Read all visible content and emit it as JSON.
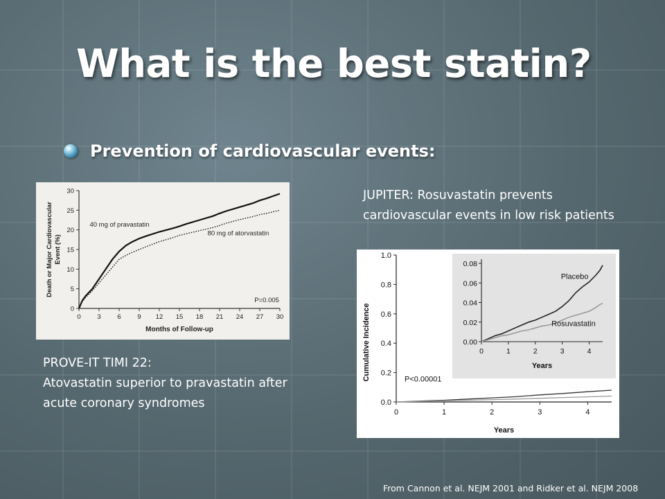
{
  "slide": {
    "title": "What is the best statin?",
    "bullet": "Prevention of cardiovascular events:",
    "caption_right": "JUPITER: Rosuvastatin prevents cardiovascular events in low risk patients",
    "caption_left_line1": "PROVE-IT TIMI 22:",
    "caption_left_line2": "Atovastatin superior to pravastatin after acute coronary syndromes",
    "footer": "From Cannon et al. NEJM 2001 and Ridker et al. NEJM 2008"
  },
  "chart_data": [
    {
      "type": "line",
      "ylabel": "Death or Major Cardiovascular Event (%)",
      "xlabel": "Months of Follow-up",
      "xlim": [
        0,
        30
      ],
      "ylim": [
        0,
        30
      ],
      "xticks": [
        0,
        3,
        6,
        9,
        12,
        15,
        18,
        21,
        24,
        27,
        30
      ],
      "yticks": [
        0,
        5,
        10,
        15,
        20,
        25,
        30
      ],
      "annotation": "P=0.005",
      "series": [
        {
          "name": "40 mg of pravastatin",
          "style": "solid",
          "x": [
            0,
            0.5,
            1,
            2,
            3,
            4,
            5,
            6,
            7,
            8,
            9,
            10,
            12,
            14,
            15,
            16,
            18,
            20,
            21,
            22,
            24,
            26,
            27,
            28,
            29,
            30
          ],
          "y": [
            0,
            2,
            3.2,
            5,
            7.5,
            10,
            12.5,
            14.5,
            16,
            17,
            17.8,
            18.4,
            19.5,
            20.4,
            20.9,
            21.5,
            22.5,
            23.5,
            24.2,
            24.8,
            25.8,
            26.8,
            27.5,
            28,
            28.6,
            29.2
          ]
        },
        {
          "name": "80 mg of atorvastatin",
          "style": "dotted",
          "x": [
            0,
            0.5,
            1,
            2,
            3,
            4,
            5,
            6,
            7,
            8,
            9,
            10,
            12,
            14,
            15,
            16,
            18,
            20,
            21,
            22,
            24,
            26,
            27,
            28,
            29,
            30
          ],
          "y": [
            0,
            1.8,
            2.8,
            4.5,
            6.5,
            8.5,
            10.5,
            12.5,
            13.5,
            14.3,
            15,
            15.7,
            17,
            18,
            18.6,
            19,
            19.8,
            20.6,
            21.1,
            21.7,
            22.6,
            23.4,
            23.9,
            24.2,
            24.6,
            25
          ]
        }
      ]
    },
    {
      "type": "line",
      "ylabel": "Cumulative Incidence",
      "xlabel": "Years",
      "xlim": [
        0,
        4.5
      ],
      "ylim": [
        0,
        1.0
      ],
      "xticks": [
        0,
        1,
        2,
        3,
        4
      ],
      "yticks": [
        0.0,
        0.2,
        0.4,
        0.6,
        0.8,
        1.0
      ],
      "annotation": "P<0.00001",
      "series": [
        {
          "name": "Placebo",
          "color": "#333333",
          "x": [
            0,
            0.5,
            1,
            1.5,
            2,
            2.5,
            3,
            3.5,
            4,
            4.5
          ],
          "y": [
            0,
            0.006,
            0.012,
            0.02,
            0.028,
            0.036,
            0.048,
            0.058,
            0.07,
            0.08
          ]
        },
        {
          "name": "Rosuvastatin",
          "color": "#999999",
          "x": [
            0,
            0.5,
            1,
            1.5,
            2,
            2.5,
            3,
            3.5,
            4,
            4.5
          ],
          "y": [
            0,
            0.004,
            0.008,
            0.012,
            0.016,
            0.02,
            0.025,
            0.03,
            0.035,
            0.04
          ]
        }
      ],
      "inset": {
        "xlabel": "Years",
        "xlim": [
          0,
          4.5
        ],
        "ylim": [
          0,
          0.08
        ],
        "xticks": [
          0,
          1,
          2,
          3,
          4
        ],
        "yticks": [
          0.0,
          0.02,
          0.04,
          0.06,
          0.08
        ],
        "ytick_labels": [
          "0.00",
          "0.02",
          "0.04",
          "0.06",
          "0.08"
        ],
        "series": [
          {
            "name": "Placebo",
            "color": "#222222",
            "x": [
              0,
              0.25,
              0.5,
              0.75,
              1,
              1.25,
              1.5,
              1.75,
              2,
              2.25,
              2.5,
              2.75,
              3,
              3.25,
              3.5,
              3.75,
              4,
              4.25,
              4.4,
              4.5
            ],
            "y": [
              0,
              0.003,
              0.006,
              0.008,
              0.011,
              0.014,
              0.017,
              0.02,
              0.022,
              0.025,
              0.028,
              0.031,
              0.036,
              0.042,
              0.05,
              0.056,
              0.061,
              0.068,
              0.073,
              0.078
            ]
          },
          {
            "name": "Rosuvastatin",
            "color": "#9a9a9a",
            "x": [
              0,
              0.25,
              0.5,
              0.75,
              1,
              1.25,
              1.5,
              1.75,
              2,
              2.25,
              2.5,
              2.75,
              3,
              3.25,
              3.5,
              3.75,
              4,
              4.25,
              4.4,
              4.5
            ],
            "y": [
              0,
              0.002,
              0.004,
              0.006,
              0.007,
              0.009,
              0.011,
              0.012,
              0.014,
              0.016,
              0.017,
              0.019,
              0.022,
              0.025,
              0.027,
              0.029,
              0.031,
              0.035,
              0.038,
              0.039
            ]
          }
        ]
      }
    }
  ]
}
